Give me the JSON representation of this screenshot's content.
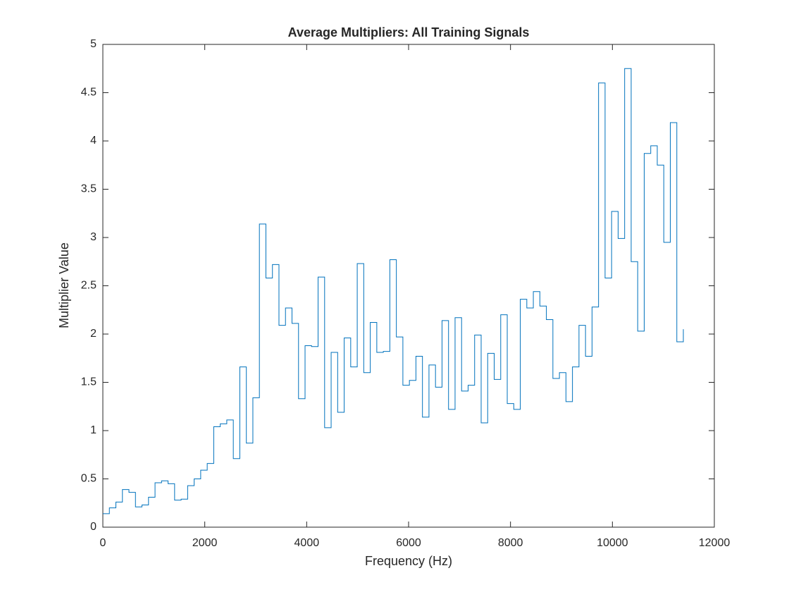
{
  "chart_data": {
    "type": "stairs",
    "title": "Average Multipliers: All Training Signals",
    "x_label": "Frequency (Hz)",
    "y_label": "Multiplier Value",
    "series": [
      {
        "name": "Average Multipliers",
        "color": "#0072bd",
        "x": [
          0,
          128,
          256,
          384,
          512,
          640,
          768,
          896,
          1024,
          1152,
          1280,
          1408,
          1536,
          1664,
          1792,
          1920,
          2048,
          2176,
          2304,
          2432,
          2560,
          2688,
          2816,
          2944,
          3072,
          3200,
          3328,
          3456,
          3584,
          3712,
          3840,
          3968,
          4096,
          4224,
          4352,
          4480,
          4608,
          4736,
          4864,
          4992,
          5120,
          5248,
          5376,
          5504,
          5632,
          5760,
          5888,
          6016,
          6144,
          6272,
          6400,
          6528,
          6656,
          6784,
          6912,
          7040,
          7168,
          7296,
          7424,
          7552,
          7680,
          7808,
          7936,
          8064,
          8192,
          8320,
          8448,
          8576,
          8704,
          8832,
          8960,
          9088,
          9216,
          9344,
          9472,
          9600,
          9728,
          9856,
          9984,
          10112,
          10240,
          10368,
          10496,
          10624,
          10752,
          10880,
          11008,
          11136,
          11264,
          11392
        ],
        "values": [
          0.14,
          0.2,
          0.26,
          0.39,
          0.36,
          0.21,
          0.23,
          0.31,
          0.46,
          0.48,
          0.45,
          0.28,
          0.29,
          0.43,
          0.5,
          0.59,
          0.66,
          1.04,
          1.07,
          1.11,
          0.71,
          1.66,
          0.87,
          1.34,
          3.14,
          2.58,
          2.72,
          2.09,
          2.27,
          2.11,
          1.33,
          1.88,
          1.87,
          2.59,
          1.03,
          1.81,
          1.19,
          1.96,
          1.66,
          2.73,
          1.6,
          2.12,
          1.81,
          1.82,
          2.77,
          1.97,
          1.47,
          1.52,
          1.77,
          1.14,
          1.68,
          1.45,
          2.14,
          1.22,
          2.17,
          1.41,
          1.47,
          1.99,
          1.08,
          1.8,
          1.53,
          2.2,
          1.28,
          1.22,
          2.36,
          2.27,
          2.44,
          2.29,
          2.15,
          1.54,
          1.6,
          1.3,
          1.66,
          2.09,
          1.77,
          2.28,
          4.6,
          2.58,
          3.27,
          2.99,
          4.75,
          2.75,
          2.03,
          3.87,
          3.95,
          3.75,
          2.95,
          4.19,
          1.92,
          2.05
        ]
      }
    ],
    "xlim": [
      0,
      12000
    ],
    "xticks": [
      0,
      2000,
      4000,
      6000,
      8000,
      10000,
      12000
    ],
    "ylim": [
      0,
      5
    ],
    "yticks": [
      0,
      0.5,
      1,
      1.5,
      2,
      2.5,
      3,
      3.5,
      4,
      4.5,
      5
    ],
    "grid": false
  }
}
